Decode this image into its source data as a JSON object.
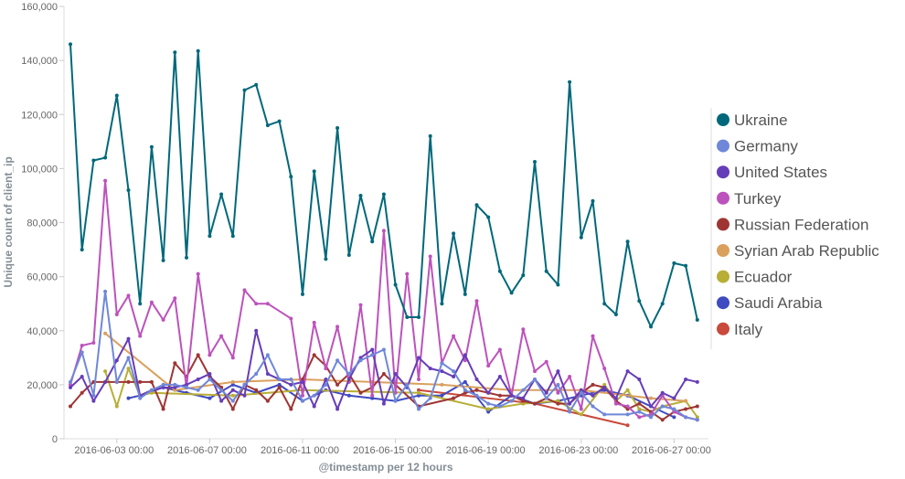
{
  "chart_data": {
    "type": "line",
    "xlabel": "@timestamp per 12 hours",
    "ylabel": "Unique count of client_ip",
    "ylim": [
      0,
      160000
    ],
    "y_ticks": [
      "0",
      "20,000",
      "40,000",
      "60,000",
      "80,000",
      "100,000",
      "120,000",
      "140,000",
      "160,000"
    ],
    "y_tick_values": [
      0,
      20000,
      40000,
      60000,
      80000,
      100000,
      120000,
      140000,
      160000
    ],
    "x_start": "2016-06-01 00:00",
    "interval_hours": 12,
    "x_ticks": [
      {
        "label": "2016-06-03 00:00",
        "index": 4
      },
      {
        "label": "2016-06-07 00:00",
        "index": 12
      },
      {
        "label": "2016-06-11 00:00",
        "index": 20
      },
      {
        "label": "2016-06-15 00:00",
        "index": 28
      },
      {
        "label": "2016-06-19 00:00",
        "index": 36
      },
      {
        "label": "2016-06-23 00:00",
        "index": 44
      },
      {
        "label": "2016-06-27 00:00",
        "index": 52
      }
    ],
    "legend_position": "right",
    "series": [
      {
        "name": "Ukraine",
        "color": "#00687a",
        "values": [
          146000,
          70000,
          103000,
          104000,
          127000,
          92000,
          50000,
          108000,
          66000,
          143000,
          67000,
          143500,
          75000,
          90500,
          75000,
          129000,
          131000,
          116000,
          117500,
          97000,
          53500,
          99000,
          66500,
          115000,
          68000,
          90000,
          73000,
          90500,
          57000,
          45000,
          45000,
          112000,
          50000,
          76000,
          53500,
          86500,
          82000,
          62000,
          54000,
          60500,
          102500,
          62000,
          57000,
          132000,
          74500,
          88000,
          50000,
          46000,
          73000,
          51000,
          41500,
          50000,
          65000,
          64000,
          44000
        ]
      },
      {
        "name": "Germany",
        "color": "#6f87d8",
        "values": [
          21000,
          32000,
          16000,
          54500,
          21000,
          30000,
          15000,
          18000,
          20000,
          20000,
          19000,
          18000,
          22000,
          18000,
          14000,
          20000,
          24000,
          31000,
          22000,
          22000,
          14000,
          16000,
          20000,
          29000,
          24000,
          29000,
          31000,
          33000,
          14000,
          20000,
          11000,
          15000,
          28000,
          25000,
          18000,
          16000,
          13000,
          12000,
          14000,
          18000,
          22000,
          15000,
          20000,
          10000,
          17000,
          12000,
          9000,
          null,
          9000,
          10000,
          8000,
          12000,
          11000,
          8000,
          7000
        ]
      },
      {
        "name": "United States",
        "color": "#663db8",
        "values": [
          19000,
          23000,
          14000,
          21000,
          29000,
          37000,
          16000,
          18000,
          19000,
          19000,
          20000,
          22000,
          24000,
          14000,
          18000,
          16000,
          40000,
          24000,
          22000,
          20000,
          21000,
          12000,
          22000,
          11000,
          22000,
          30000,
          33000,
          13000,
          24000,
          19000,
          30000,
          26000,
          25000,
          23000,
          31000,
          22000,
          17000,
          23000,
          16000,
          15000,
          22000,
          17000,
          25000,
          13000,
          18000,
          16000,
          19000,
          15000,
          25000,
          22000,
          12000,
          17000,
          15000,
          22000,
          21000
        ]
      },
      {
        "name": "Turkey",
        "color": "#bc52bc",
        "values": [
          20000,
          34500,
          35500,
          95500,
          46000,
          53000,
          38000,
          50500,
          44000,
          52000,
          19000,
          61000,
          31000,
          38000,
          30000,
          55000,
          50000,
          50000,
          null,
          44500,
          16000,
          43000,
          26000,
          41500,
          21000,
          49500,
          16000,
          77000,
          17000,
          61000,
          22000,
          67500,
          28000,
          38000,
          29000,
          51000,
          27000,
          33000,
          16000,
          40500,
          25000,
          28500,
          17000,
          23000,
          11000,
          38000,
          26000,
          13000,
          12000,
          8000,
          9000,
          16000,
          10000,
          8000,
          7000
        ]
      },
      {
        "name": "Russian Federation",
        "color": "#9e3533",
        "values": [
          12000,
          17000,
          21000,
          21000,
          21000,
          21000,
          21000,
          21000,
          11000,
          28000,
          23000,
          31000,
          23000,
          19000,
          11000,
          20000,
          18000,
          14000,
          19000,
          11000,
          22000,
          31000,
          27000,
          20000,
          24000,
          17000,
          19000,
          24000,
          20000,
          null,
          12000,
          null,
          null,
          15000,
          17000,
          18000,
          17000,
          16000,
          16000,
          14000,
          13000,
          15000,
          13000,
          13000,
          17000,
          20000,
          19000,
          14000,
          11000,
          13000,
          10000,
          7000,
          10000,
          11000,
          12000
        ]
      },
      {
        "name": "Syrian Arab Republic",
        "color": "#daa05d",
        "values": [
          null,
          null,
          null,
          39000,
          null,
          null,
          null,
          null,
          null,
          18000,
          null,
          null,
          null,
          null,
          21000,
          null,
          null,
          null,
          null,
          null,
          22000,
          null,
          null,
          null,
          null,
          null,
          21000,
          null,
          null,
          null,
          null,
          null,
          20000,
          null,
          null,
          null,
          null,
          null,
          18000,
          null,
          null,
          null,
          null,
          null,
          18000,
          null,
          null,
          null,
          null,
          null,
          15000,
          null,
          null,
          14000,
          null
        ]
      },
      {
        "name": "Ecuador",
        "color": "#b8ae36",
        "values": [
          null,
          null,
          null,
          25000,
          12000,
          26000,
          16000,
          17000,
          null,
          null,
          null,
          null,
          null,
          null,
          16000,
          null,
          null,
          null,
          null,
          null,
          18000,
          null,
          null,
          null,
          null,
          null,
          null,
          null,
          null,
          null,
          17000,
          null,
          null,
          null,
          null,
          null,
          11000,
          null,
          null,
          13000,
          null,
          null,
          14000,
          null,
          9000,
          null,
          20000,
          14000,
          18000,
          11000,
          10000,
          12000,
          null,
          14000,
          8000
        ]
      },
      {
        "name": "Saudi Arabia",
        "color": "#3f4bc0",
        "values": [
          null,
          null,
          null,
          null,
          null,
          15000,
          16000,
          null,
          19000,
          null,
          17000,
          null,
          15000,
          null,
          20000,
          null,
          17000,
          null,
          20000,
          null,
          14000,
          null,
          18000,
          null,
          16000,
          null,
          15000,
          null,
          14000,
          null,
          16000,
          null,
          16000,
          null,
          21000,
          null,
          10000,
          null,
          16000,
          null,
          13000,
          null,
          14000,
          null,
          16000,
          null,
          18000,
          null,
          16000,
          null,
          12000,
          null,
          8000,
          null,
          null
        ]
      },
      {
        "name": "Italy",
        "color": "#c9493b",
        "values": [
          null,
          null,
          null,
          null,
          null,
          null,
          null,
          null,
          null,
          null,
          null,
          null,
          null,
          null,
          null,
          null,
          null,
          null,
          null,
          null,
          null,
          null,
          null,
          null,
          null,
          null,
          null,
          null,
          null,
          null,
          18000,
          null,
          null,
          null,
          null,
          null,
          null,
          null,
          null,
          null,
          13000,
          null,
          null,
          null,
          null,
          null,
          null,
          null,
          5000,
          null,
          null,
          null,
          null,
          null,
          null
        ]
      }
    ]
  }
}
